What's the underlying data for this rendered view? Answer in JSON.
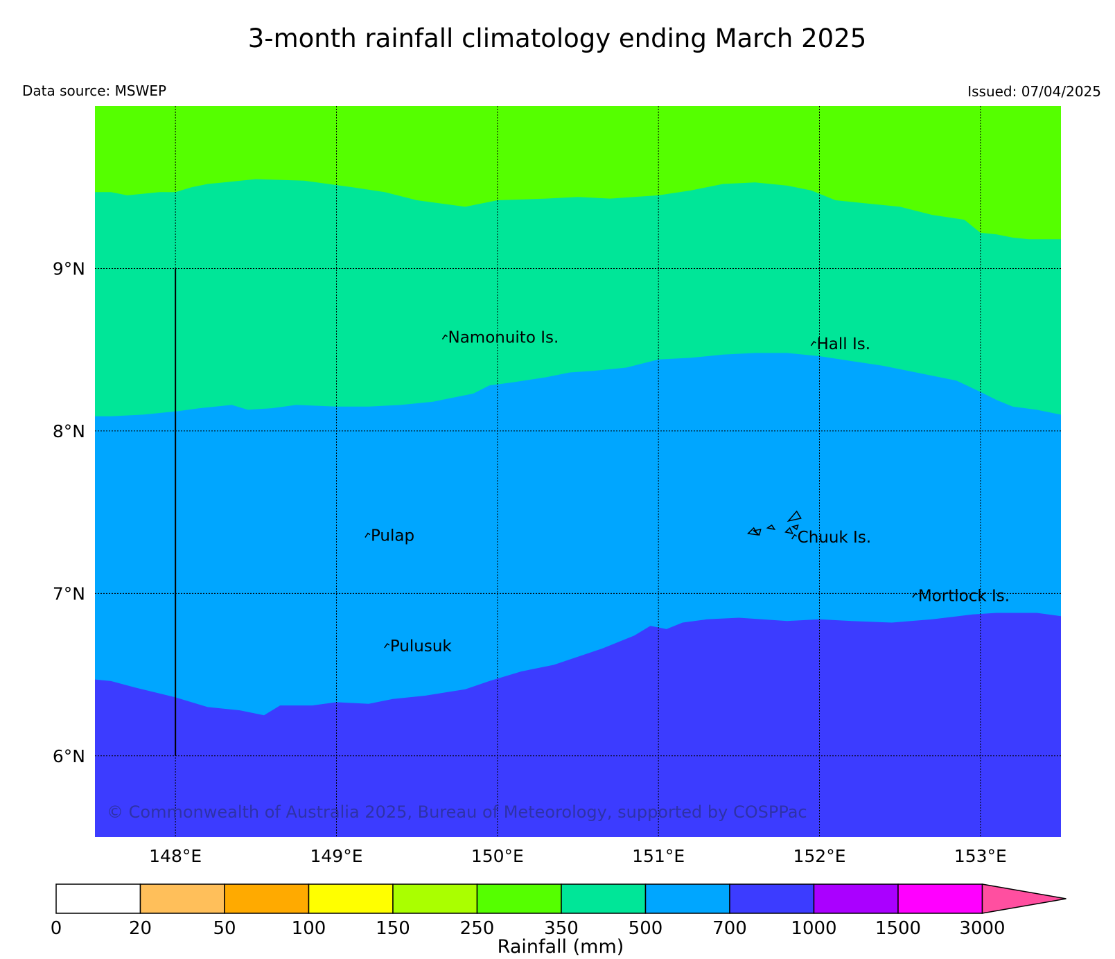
{
  "title": "3-month rainfall climatology ending March 2025",
  "data_source": "Data source: MSWEP",
  "issued": "Issued: 07/04/2025",
  "copyright": "© Commonwealth of Australia 2025, Bureau of Meteorology, supported by COSPPac",
  "map": {
    "lon_range": [
      147.5,
      153.5
    ],
    "lat_range": [
      5.5,
      10.0
    ],
    "lat_ticks": [
      {
        "value": 6,
        "label": "6°N"
      },
      {
        "value": 7,
        "label": "7°N"
      },
      {
        "value": 8,
        "label": "8°N"
      },
      {
        "value": 9,
        "label": "9°N"
      }
    ],
    "lon_ticks": [
      {
        "value": 148,
        "label": "148°E"
      },
      {
        "value": 149,
        "label": "149°E"
      },
      {
        "value": 150,
        "label": "150°E"
      },
      {
        "value": 151,
        "label": "151°E"
      },
      {
        "value": 152,
        "label": "152°E"
      },
      {
        "value": 153,
        "label": "153°E"
      }
    ],
    "grid": true,
    "zones": [
      {
        "range": "250-350",
        "color": "#55ff00"
      },
      {
        "range": "350-500",
        "color": "#00e698"
      },
      {
        "range": "500-700",
        "color": "#00a6ff"
      },
      {
        "range": "700-1000",
        "color": "#3c3cff"
      }
    ],
    "contours": [
      {
        "name": "350-500 boundary",
        "points": [
          [
            147.5,
            9.47
          ],
          [
            147.6,
            9.47
          ],
          [
            147.7,
            9.45
          ],
          [
            147.8,
            9.46
          ],
          [
            147.9,
            9.47
          ],
          [
            148.0,
            9.47
          ],
          [
            148.1,
            9.5
          ],
          [
            148.2,
            9.52
          ],
          [
            148.3,
            9.53
          ],
          [
            148.5,
            9.55
          ],
          [
            148.8,
            9.54
          ],
          [
            148.95,
            9.52
          ],
          [
            149.1,
            9.5
          ],
          [
            149.3,
            9.47
          ],
          [
            149.5,
            9.42
          ],
          [
            149.8,
            9.38
          ],
          [
            150.0,
            9.42
          ],
          [
            150.3,
            9.43
          ],
          [
            150.5,
            9.44
          ],
          [
            150.7,
            9.43
          ],
          [
            151.0,
            9.45
          ],
          [
            151.2,
            9.48
          ],
          [
            151.4,
            9.52
          ],
          [
            151.6,
            9.53
          ],
          [
            151.8,
            9.51
          ],
          [
            151.95,
            9.48
          ],
          [
            152.1,
            9.42
          ],
          [
            152.3,
            9.4
          ],
          [
            152.5,
            9.38
          ],
          [
            152.7,
            9.33
          ],
          [
            152.9,
            9.3
          ],
          [
            153.0,
            9.22
          ],
          [
            153.1,
            9.21
          ],
          [
            153.2,
            9.19
          ],
          [
            153.3,
            9.18
          ],
          [
            153.5,
            9.18
          ]
        ]
      },
      {
        "name": "500-700 boundary",
        "points": [
          [
            147.5,
            8.09
          ],
          [
            147.6,
            8.09
          ],
          [
            147.8,
            8.1
          ],
          [
            148.0,
            8.12
          ],
          [
            148.15,
            8.14
          ],
          [
            148.35,
            8.16
          ],
          [
            148.45,
            8.13
          ],
          [
            148.6,
            8.14
          ],
          [
            148.75,
            8.16
          ],
          [
            149.0,
            8.15
          ],
          [
            149.2,
            8.15
          ],
          [
            149.4,
            8.16
          ],
          [
            149.6,
            8.18
          ],
          [
            149.85,
            8.23
          ],
          [
            149.95,
            8.28
          ],
          [
            150.1,
            8.3
          ],
          [
            150.3,
            8.33
          ],
          [
            150.45,
            8.36
          ],
          [
            150.6,
            8.37
          ],
          [
            150.8,
            8.39
          ],
          [
            151.0,
            8.44
          ],
          [
            151.2,
            8.45
          ],
          [
            151.4,
            8.47
          ],
          [
            151.6,
            8.48
          ],
          [
            151.8,
            8.48
          ],
          [
            152.0,
            8.46
          ],
          [
            152.2,
            8.43
          ],
          [
            152.4,
            8.4
          ],
          [
            152.6,
            8.36
          ],
          [
            152.85,
            8.31
          ],
          [
            153.0,
            8.24
          ],
          [
            153.1,
            8.19
          ],
          [
            153.2,
            8.15
          ],
          [
            153.35,
            8.13
          ],
          [
            153.5,
            8.1
          ]
        ]
      },
      {
        "name": "700-1000 boundary",
        "points": [
          [
            147.5,
            6.47
          ],
          [
            147.6,
            6.46
          ],
          [
            147.75,
            6.42
          ],
          [
            148.0,
            6.36
          ],
          [
            148.2,
            6.3
          ],
          [
            148.4,
            6.28
          ],
          [
            148.55,
            6.25
          ],
          [
            148.65,
            6.31
          ],
          [
            148.85,
            6.31
          ],
          [
            149.0,
            6.33
          ],
          [
            149.2,
            6.32
          ],
          [
            149.35,
            6.35
          ],
          [
            149.55,
            6.37
          ],
          [
            149.8,
            6.41
          ],
          [
            149.95,
            6.46
          ],
          [
            150.15,
            6.52
          ],
          [
            150.35,
            6.56
          ],
          [
            150.5,
            6.61
          ],
          [
            150.65,
            6.66
          ],
          [
            150.85,
            6.74
          ],
          [
            150.95,
            6.8
          ],
          [
            151.05,
            6.78
          ],
          [
            151.15,
            6.82
          ],
          [
            151.3,
            6.84
          ],
          [
            151.5,
            6.85
          ],
          [
            151.8,
            6.83
          ],
          [
            152.0,
            6.84
          ],
          [
            152.2,
            6.83
          ],
          [
            152.45,
            6.82
          ],
          [
            152.7,
            6.84
          ],
          [
            152.95,
            6.87
          ],
          [
            153.1,
            6.88
          ],
          [
            153.35,
            6.88
          ],
          [
            153.5,
            6.86
          ]
        ]
      }
    ],
    "places": [
      {
        "name": "Namonuito Is.",
        "lon": 149.68,
        "lat": 8.59
      },
      {
        "name": "Hall Is.",
        "lon": 151.97,
        "lat": 8.55
      },
      {
        "name": "Pulap",
        "lon": 149.2,
        "lat": 7.37
      },
      {
        "name": "Chuuk Is.",
        "lon": 151.85,
        "lat": 7.36
      },
      {
        "name": "Mortlock Is.",
        "lon": 152.6,
        "lat": 7.0
      },
      {
        "name": "Pulusuk",
        "lon": 149.32,
        "lat": 6.69
      }
    ],
    "meridian_line": {
      "lon": 148.0,
      "lat_from": 6.0,
      "lat_to": 9.0
    }
  },
  "colorbar": {
    "label": "Rainfall (mm)",
    "ticks": [
      "0",
      "20",
      "50",
      "100",
      "150",
      "250",
      "350",
      "500",
      "700",
      "1000",
      "1500",
      "3000"
    ],
    "colors": [
      "#ffffff",
      "#ffbf5a",
      "#ffaa00",
      "#ffff00",
      "#aaff00",
      "#55ff00",
      "#00e698",
      "#00a6ff",
      "#3c3cff",
      "#aa00ff",
      "#ff00ff"
    ],
    "extend_color": "#ff4fa0"
  }
}
